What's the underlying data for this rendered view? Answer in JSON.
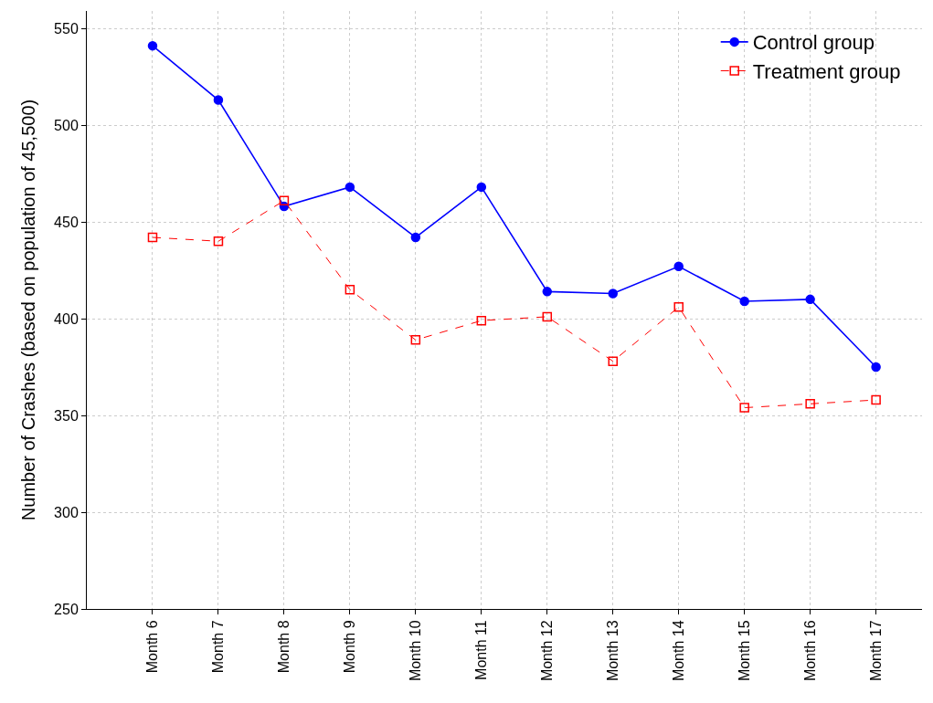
{
  "chart_data": {
    "type": "line",
    "ylabel": "Number of Crashes (based on population of 45,500)",
    "categories": [
      "Month 6",
      "Month 7",
      "Month 8",
      "Month 9",
      "Month 10",
      "Month 11",
      "Month 12",
      "Month 13",
      "Month 14",
      "Month 15",
      "Month 16",
      "Month 17"
    ],
    "series": [
      {
        "name": "Control group",
        "color": "#0000ff",
        "marker": "circle",
        "line_style": "solid",
        "values": [
          541,
          513,
          458,
          468,
          442,
          468,
          414,
          413,
          427,
          409,
          410,
          375
        ]
      },
      {
        "name": "Treatment group",
        "color": "#ff0000",
        "marker": "square",
        "line_style": "dashed",
        "values": [
          442,
          440,
          461,
          415,
          389,
          399,
          401,
          378,
          406,
          354,
          356,
          358
        ]
      }
    ],
    "ylim": [
      250,
      559
    ],
    "yticks": [
      250,
      300,
      350,
      400,
      450,
      500,
      550
    ],
    "grid": true,
    "legend": "top right"
  }
}
